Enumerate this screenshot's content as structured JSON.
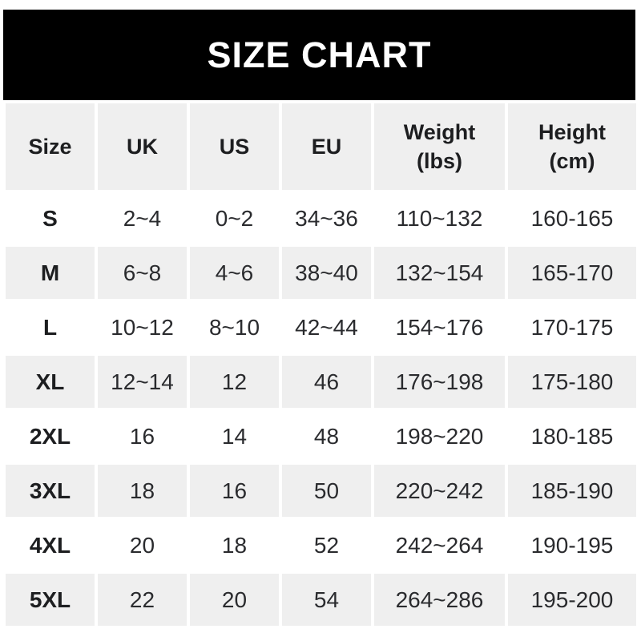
{
  "banner": {
    "title": "SIZE CHART"
  },
  "colors": {
    "banner_bg": "#000000",
    "banner_text": "#ffffff",
    "row_alt_bg": "#efefef",
    "row_bg": "#ffffff",
    "text_bold": "#1d1e20",
    "text_regular": "#2a2b2e"
  },
  "chart_data": {
    "type": "table",
    "title": "SIZE CHART",
    "columns": [
      {
        "key": "size",
        "lines": [
          "Size"
        ]
      },
      {
        "key": "uk",
        "lines": [
          "UK"
        ]
      },
      {
        "key": "us",
        "lines": [
          "US"
        ]
      },
      {
        "key": "eu",
        "lines": [
          "EU"
        ]
      },
      {
        "key": "weight-lbs",
        "lines": [
          "Weight",
          "(lbs)"
        ]
      },
      {
        "key": "height-cm",
        "lines": [
          "Height",
          "(cm)"
        ]
      }
    ],
    "rows": [
      [
        "S",
        "2~4",
        "0~2",
        "34~36",
        "110~132",
        "160-165"
      ],
      [
        "M",
        "6~8",
        "4~6",
        "38~40",
        "132~154",
        "165-170"
      ],
      [
        "L",
        "10~12",
        "8~10",
        "42~44",
        "154~176",
        "170-175"
      ],
      [
        "XL",
        "12~14",
        "12",
        "46",
        "176~198",
        "175-180"
      ],
      [
        "2XL",
        "16",
        "14",
        "48",
        "198~220",
        "180-185"
      ],
      [
        "3XL",
        "18",
        "16",
        "50",
        "220~242",
        "185-190"
      ],
      [
        "4XL",
        "20",
        "18",
        "52",
        "242~264",
        "190-195"
      ],
      [
        "5XL",
        "22",
        "20",
        "54",
        "264~286",
        "195-200"
      ]
    ]
  }
}
